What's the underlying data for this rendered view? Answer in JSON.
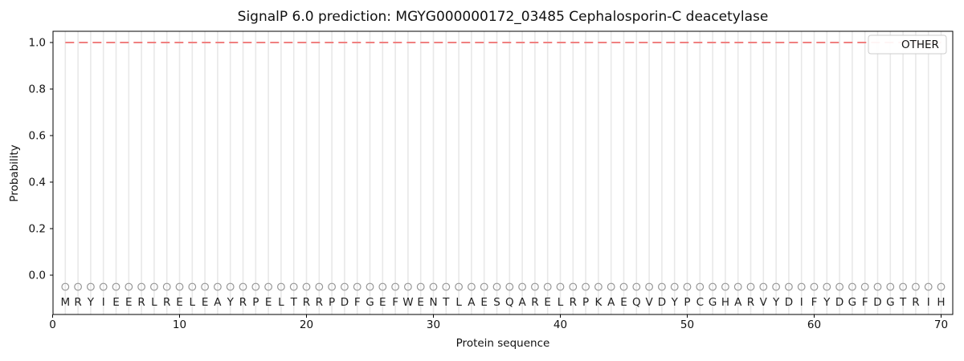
{
  "figure": {
    "title": "SignalP 6.0 prediction: MGYG000000172_03485 Cephalosporin-C deacetylase"
  },
  "chart_data": {
    "type": "line",
    "title": "SignalP 6.0 prediction: MGYG000000172_03485 Cephalosporin-C deacetylase",
    "xlabel": "Protein sequence",
    "ylabel": "Probability",
    "x_ticks": [
      0,
      10,
      20,
      30,
      40,
      50,
      60,
      70
    ],
    "y_ticks": [
      "0.0",
      "0.2",
      "0.4",
      "0.6",
      "0.8",
      "1.0"
    ],
    "xlim": [
      0,
      70.9
    ],
    "ylim": [
      -0.17,
      1.05
    ],
    "grid": {
      "vertical_line_per_residue": true,
      "color": "#e8e8e8"
    },
    "sequence": "MRYIEERLRELEAYRPELTRRPDFGEFWENTLAESQARELRPKAEQVDYPCGHARVYDIFYDGFDGTRIH",
    "series": [
      {
        "name": "OTHER",
        "color": "#f08080",
        "linestyle": "dashed",
        "linewidth": 2,
        "x_start": 1,
        "x_step": 1,
        "values": [
          1.0,
          1.0,
          1.0,
          1.0,
          1.0,
          1.0,
          1.0,
          1.0,
          1.0,
          1.0,
          1.0,
          1.0,
          1.0,
          1.0,
          1.0,
          1.0,
          1.0,
          1.0,
          1.0,
          1.0,
          1.0,
          1.0,
          1.0,
          1.0,
          1.0,
          1.0,
          1.0,
          1.0,
          1.0,
          1.0,
          1.0,
          1.0,
          1.0,
          1.0,
          1.0,
          1.0,
          1.0,
          1.0,
          1.0,
          1.0,
          1.0,
          1.0,
          1.0,
          1.0,
          1.0,
          1.0,
          1.0,
          1.0,
          1.0,
          1.0,
          1.0,
          1.0,
          1.0,
          1.0,
          1.0,
          1.0,
          1.0,
          1.0,
          1.0,
          1.0,
          1.0,
          1.0,
          1.0,
          1.0,
          1.0,
          1.0,
          1.0,
          1.0,
          1.0,
          1.0
        ]
      }
    ],
    "residue_markers": {
      "shape": "open-circle",
      "color": "#979797",
      "y": -0.05
    },
    "residue_letters_y": -0.115,
    "legend": {
      "position": "upper-right",
      "entries": [
        {
          "label": "OTHER",
          "color": "#f08080",
          "linestyle": "dashed"
        }
      ]
    },
    "colors": {
      "background": "#ffffff",
      "axes": "#000000",
      "grid": "#e8e8e8",
      "other_line": "#f08080",
      "marker": "#979797",
      "legend_border": "#cccccc"
    }
  }
}
